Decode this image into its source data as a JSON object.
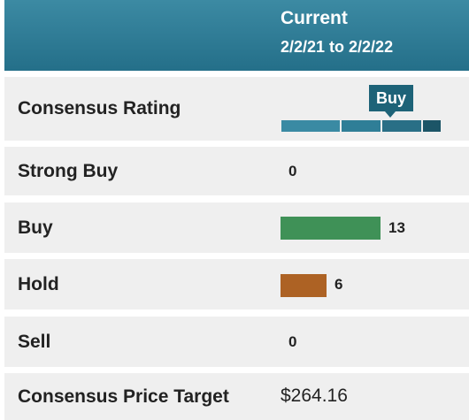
{
  "header": {
    "title": "Current",
    "date_range": "2/2/21 to 2/2/22"
  },
  "consensus_rating": {
    "label": "Consensus Rating",
    "value": "Buy",
    "scale_segments": 4,
    "selected_segment": 3
  },
  "ratings": [
    {
      "label": "Strong Buy",
      "count": "0"
    },
    {
      "label": "Buy",
      "count": "13"
    },
    {
      "label": "Hold",
      "count": "6"
    },
    {
      "label": "Sell",
      "count": "0"
    }
  ],
  "price_target": {
    "label": "Consensus Price Target",
    "value": "$264.16"
  },
  "colors": {
    "header": "#2e7f99",
    "buy_bar": "#3f9157",
    "hold_bar": "#ad6224",
    "marker": "#1e6378"
  }
}
